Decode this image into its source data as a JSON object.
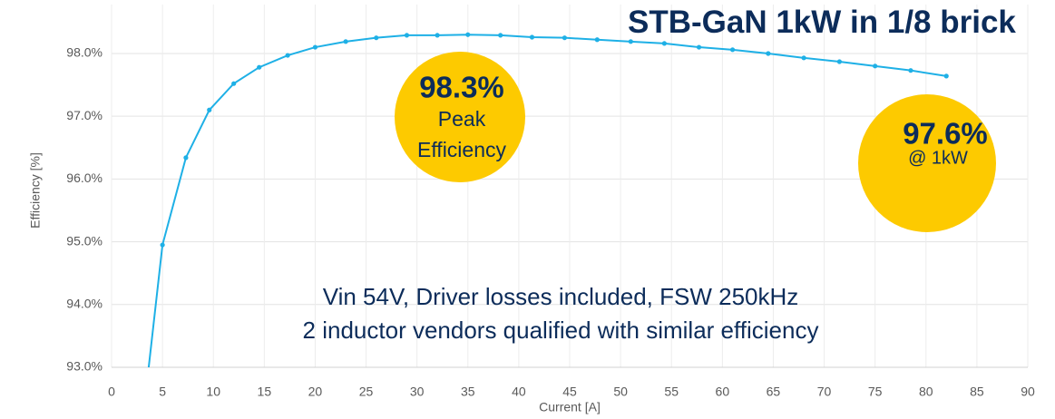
{
  "chart_data": {
    "type": "line",
    "title": "STB-GaN 1kW in 1/8 brick",
    "x_label": "Current [A]",
    "y_label": "Efficiency [%]",
    "x": [
      3.3,
      5.0,
      7.3,
      9.6,
      12.0,
      14.5,
      17.3,
      20.0,
      23.0,
      26.0,
      29.0,
      32.0,
      35.0,
      38.2,
      41.3,
      44.5,
      47.7,
      51.0,
      54.3,
      57.7,
      61.0,
      64.5,
      68.0,
      71.5,
      75.0,
      78.5,
      82.0
    ],
    "values": [
      92.5,
      94.95,
      96.34,
      97.1,
      97.52,
      97.78,
      97.97,
      98.1,
      98.19,
      98.25,
      98.29,
      98.29,
      98.3,
      98.29,
      98.26,
      98.25,
      98.22,
      98.19,
      98.16,
      98.1,
      98.06,
      98.0,
      97.93,
      97.87,
      97.8,
      97.73,
      97.64
    ],
    "color": "#1eb0e6",
    "xlim": [
      0,
      90
    ],
    "xticks": [
      0,
      5,
      10,
      15,
      20,
      25,
      30,
      35,
      40,
      45,
      50,
      55,
      60,
      65,
      70,
      75,
      80,
      85,
      90
    ],
    "ylim": [
      93,
      98.78
    ],
    "yticks": [
      {
        "value": 93,
        "label": "93.0%"
      },
      {
        "value": 94,
        "label": "94.0%"
      },
      {
        "value": 95,
        "label": "95.0%"
      },
      {
        "value": 96,
        "label": "96.0%"
      },
      {
        "value": 97,
        "label": "97.0%"
      },
      {
        "value": 98,
        "label": "98.0%"
      }
    ],
    "grid": true,
    "callouts": [
      {
        "value": "98.3%",
        "lines": [
          "Peak",
          "Efficiency"
        ]
      },
      {
        "value": "97.6%",
        "lines": [
          "@ 1kW"
        ]
      }
    ],
    "notes": [
      "Vin 54V, Driver losses included, FSW 250kHz",
      "2 inductor vendors qualified with similar efficiency"
    ]
  }
}
